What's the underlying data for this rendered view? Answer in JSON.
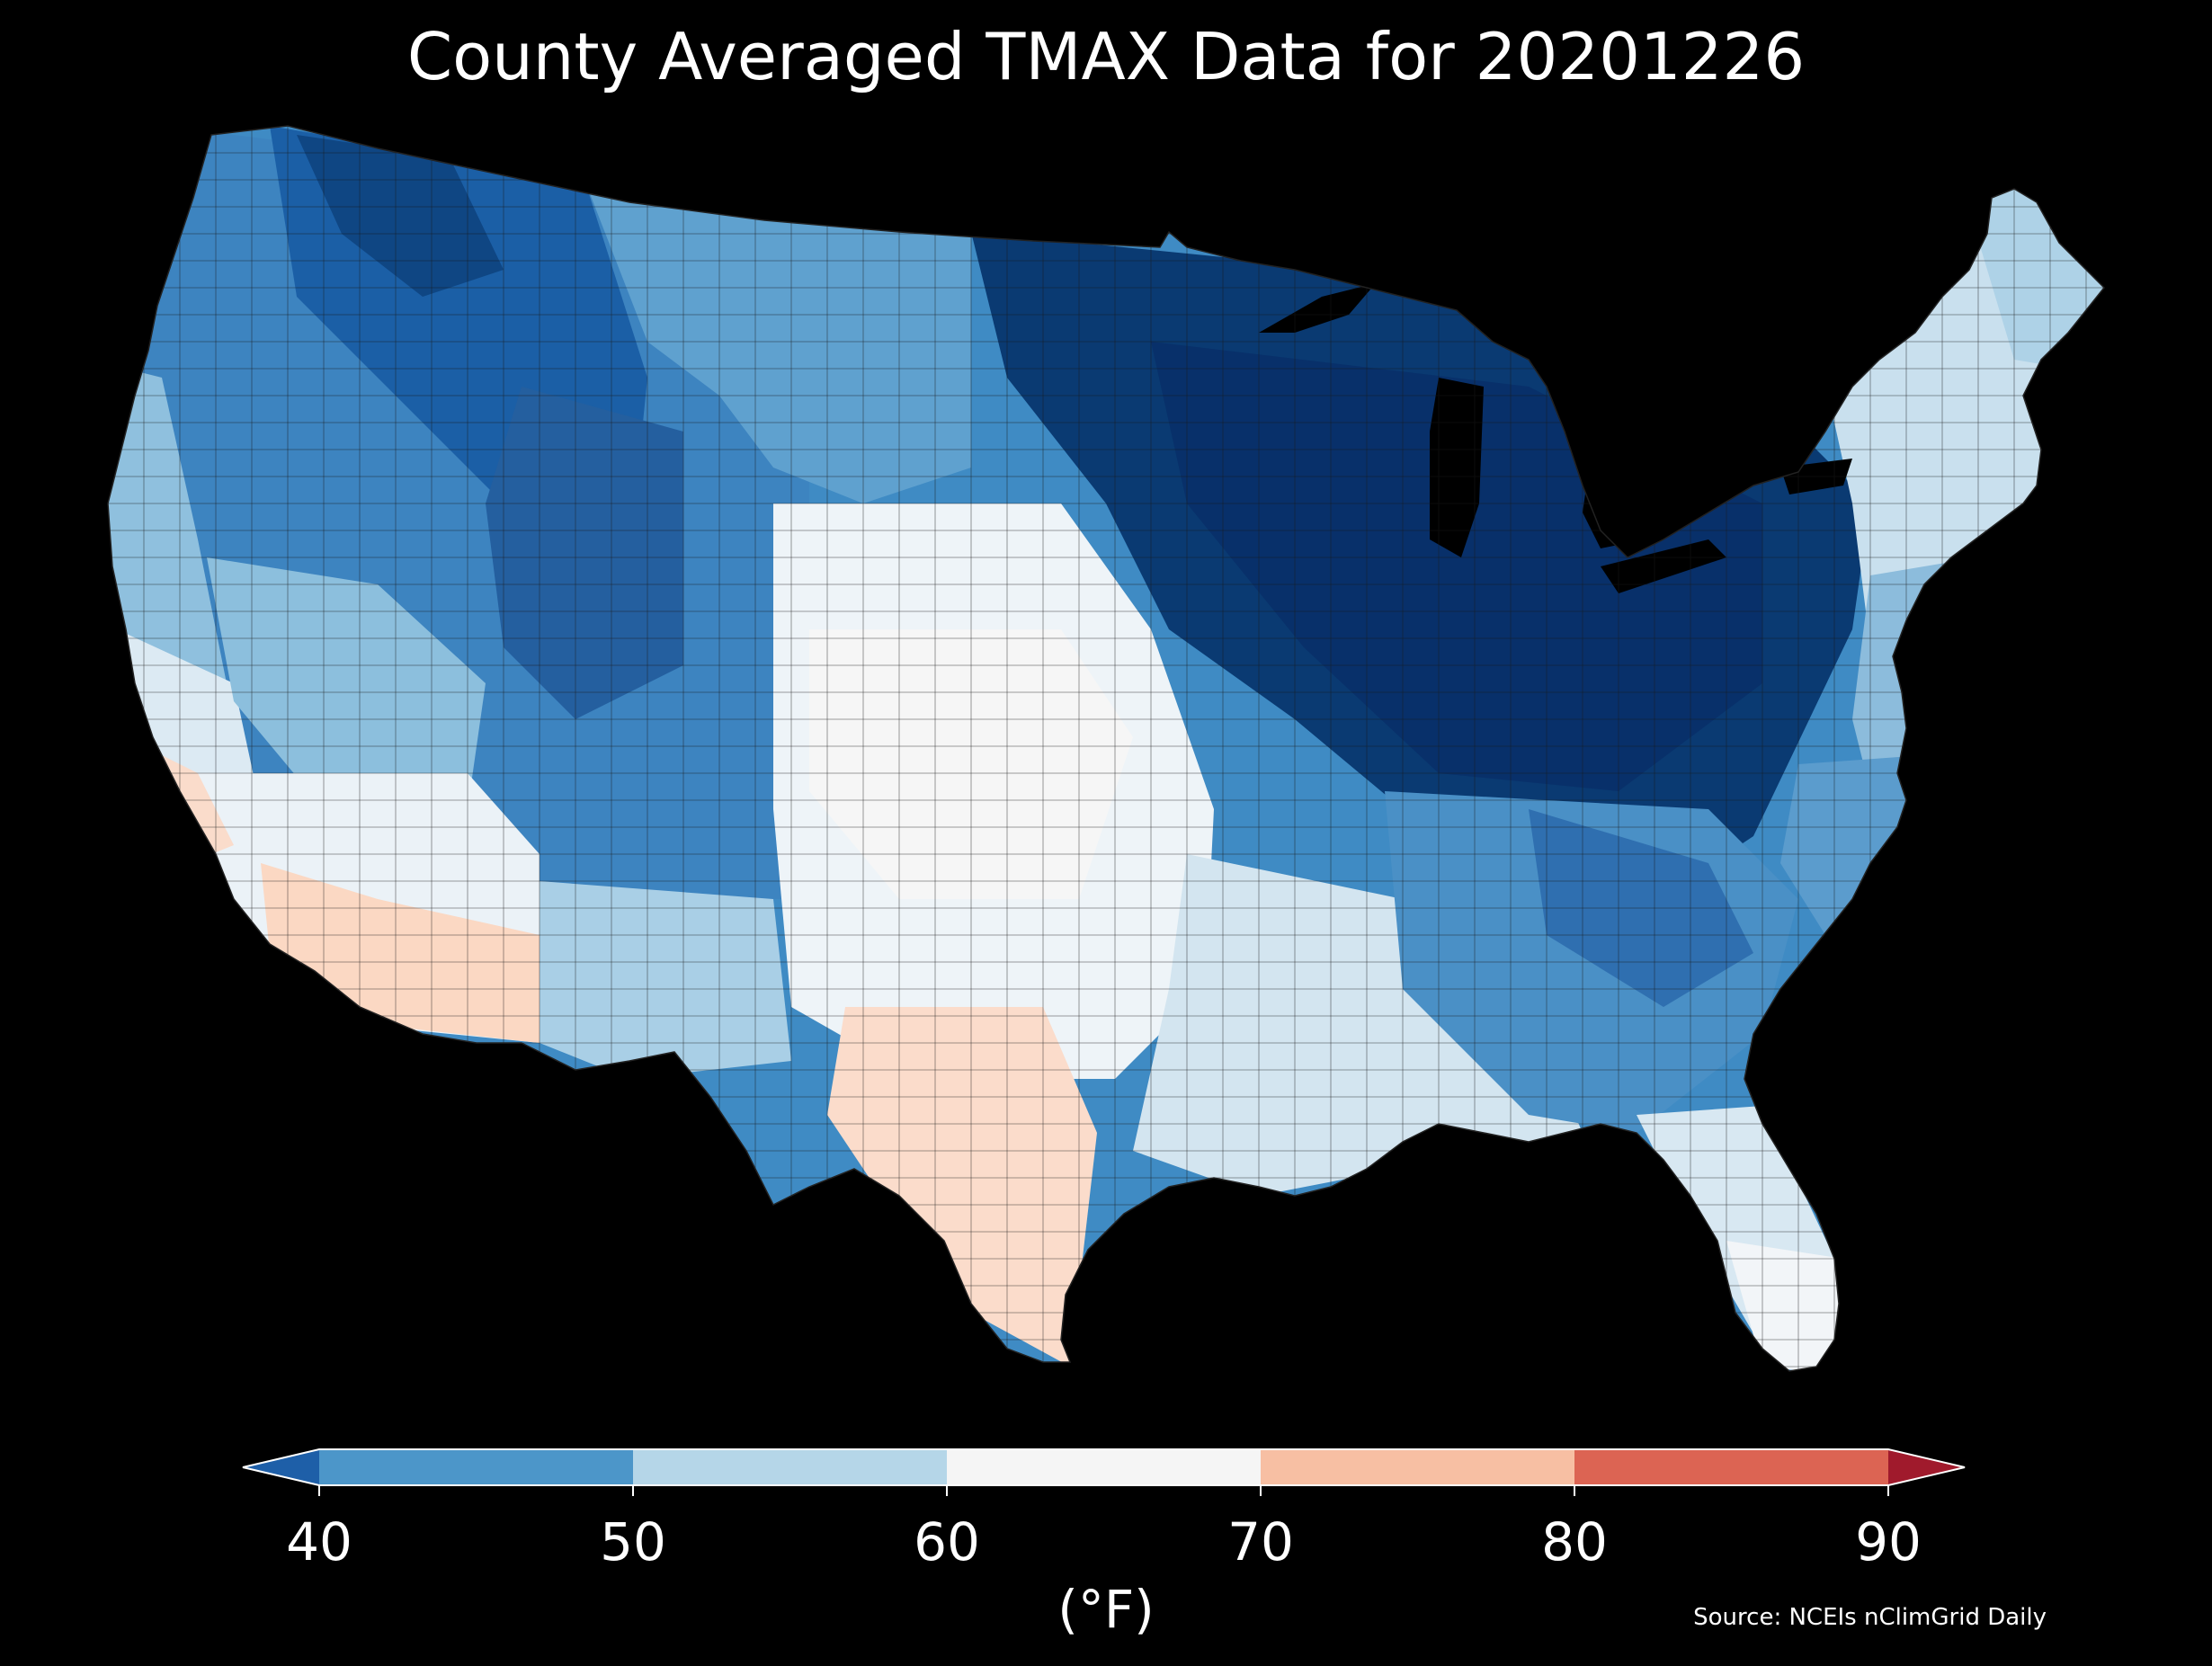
{
  "title": "County Averaged TMAX Data for 20201226",
  "colorbar": {
    "unit": "(°F)",
    "ticks": [
      "40",
      "50",
      "60",
      "70",
      "80",
      "90"
    ],
    "tick_values": [
      40,
      50,
      60,
      70,
      80,
      90
    ],
    "bins": [
      {
        "range": "<40",
        "color": "#1e5fa8"
      },
      {
        "range": "40-50",
        "color": "#4c96c9"
      },
      {
        "range": "50-60",
        "color": "#b5d6e8"
      },
      {
        "range": "60-70",
        "color": "#f5f5f5"
      },
      {
        "range": "70-80",
        "color": "#f7bfa3"
      },
      {
        "range": "80-90",
        "color": "#dc6453"
      },
      {
        "range": ">90",
        "color": "#a01a2c"
      }
    ]
  },
  "source": "Source: NCEIs nClimGrid Daily",
  "map": {
    "region": "Contiguous United States",
    "variable": "TMAX",
    "date": "20201226",
    "aggregation": "county average",
    "regional_levels": [
      {
        "area": "Pacific Northwest interior",
        "bin": "40-50"
      },
      {
        "area": "Northern Rockies",
        "bin": "<40"
      },
      {
        "area": "Great Lakes",
        "bin": "<40"
      },
      {
        "area": "Ohio Valley",
        "bin": "<40"
      },
      {
        "area": "Southern Appalachians",
        "bin": "<40"
      },
      {
        "area": "Northeast",
        "bin": "50-60"
      },
      {
        "area": "Southern California",
        "bin": "70-80"
      },
      {
        "area": "Southern Arizona",
        "bin": "70-80"
      },
      {
        "area": "South Texas",
        "bin": "70-80"
      },
      {
        "area": "Southern Plains",
        "bin": "60-70"
      },
      {
        "area": "Florida",
        "bin": "60-70"
      },
      {
        "area": "Gulf Coast",
        "bin": "50-60"
      }
    ]
  }
}
